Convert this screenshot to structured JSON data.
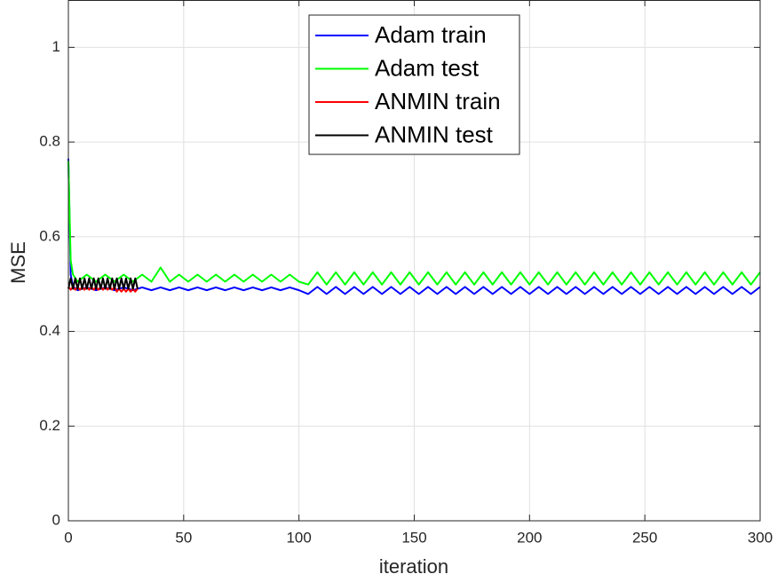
{
  "chart_data": {
    "type": "line",
    "xlabel": "iteration",
    "ylabel": "MSE",
    "xlim": [
      0,
      300
    ],
    "ylim": [
      0,
      1.1
    ],
    "xticks": [
      0,
      50,
      100,
      150,
      200,
      250,
      300
    ],
    "yticks": [
      0,
      0.2,
      0.4,
      0.6,
      0.8,
      1
    ],
    "grid": true,
    "legend": "top",
    "series": [
      {
        "name": "Adam train",
        "color": "#0000ff",
        "x": [
          0,
          1,
          2,
          4,
          8,
          12,
          16,
          20,
          24,
          28,
          32,
          36,
          40,
          44,
          48,
          52,
          56,
          60,
          64,
          68,
          72,
          76,
          80,
          84,
          88,
          92,
          96,
          100,
          104,
          108,
          112,
          116,
          120,
          124,
          128,
          132,
          136,
          140,
          144,
          148,
          152,
          156,
          160,
          164,
          168,
          172,
          176,
          180,
          184,
          188,
          192,
          196,
          200,
          204,
          208,
          212,
          216,
          220,
          224,
          228,
          232,
          236,
          240,
          244,
          248,
          252,
          256,
          260,
          264,
          268,
          272,
          276,
          280,
          284,
          288,
          292,
          296,
          300
        ],
        "values": [
          0.765,
          0.52,
          0.495,
          0.487,
          0.493,
          0.487,
          0.493,
          0.487,
          0.493,
          0.487,
          0.493,
          0.487,
          0.493,
          0.487,
          0.493,
          0.487,
          0.493,
          0.487,
          0.493,
          0.487,
          0.493,
          0.487,
          0.493,
          0.487,
          0.493,
          0.487,
          0.493,
          0.487,
          0.479,
          0.494,
          0.479,
          0.494,
          0.479,
          0.494,
          0.479,
          0.494,
          0.479,
          0.494,
          0.479,
          0.494,
          0.479,
          0.494,
          0.479,
          0.494,
          0.479,
          0.494,
          0.479,
          0.494,
          0.479,
          0.494,
          0.479,
          0.494,
          0.479,
          0.494,
          0.479,
          0.494,
          0.479,
          0.494,
          0.479,
          0.494,
          0.479,
          0.494,
          0.479,
          0.494,
          0.479,
          0.494,
          0.479,
          0.494,
          0.479,
          0.494,
          0.479,
          0.494,
          0.479,
          0.494,
          0.479,
          0.494,
          0.479,
          0.494
        ]
      },
      {
        "name": "Adam test",
        "color": "#00ff00",
        "x": [
          0,
          1,
          2,
          4,
          8,
          12,
          16,
          20,
          24,
          28,
          32,
          36,
          40,
          44,
          48,
          52,
          56,
          60,
          64,
          68,
          72,
          76,
          80,
          84,
          88,
          92,
          96,
          100,
          104,
          108,
          112,
          116,
          120,
          124,
          128,
          132,
          136,
          140,
          144,
          148,
          152,
          156,
          160,
          164,
          168,
          172,
          176,
          180,
          184,
          188,
          192,
          196,
          200,
          204,
          208,
          212,
          216,
          220,
          224,
          228,
          232,
          236,
          240,
          244,
          248,
          252,
          256,
          260,
          264,
          268,
          272,
          276,
          280,
          284,
          288,
          292,
          296,
          300
        ],
        "values": [
          0.76,
          0.55,
          0.52,
          0.505,
          0.52,
          0.505,
          0.52,
          0.505,
          0.52,
          0.505,
          0.52,
          0.505,
          0.535,
          0.505,
          0.52,
          0.505,
          0.52,
          0.505,
          0.52,
          0.505,
          0.52,
          0.505,
          0.52,
          0.505,
          0.52,
          0.505,
          0.52,
          0.505,
          0.499,
          0.525,
          0.499,
          0.525,
          0.499,
          0.525,
          0.499,
          0.525,
          0.499,
          0.525,
          0.499,
          0.525,
          0.499,
          0.525,
          0.499,
          0.525,
          0.499,
          0.525,
          0.499,
          0.525,
          0.499,
          0.525,
          0.499,
          0.525,
          0.499,
          0.525,
          0.499,
          0.525,
          0.499,
          0.525,
          0.499,
          0.525,
          0.499,
          0.525,
          0.499,
          0.525,
          0.499,
          0.525,
          0.499,
          0.525,
          0.499,
          0.525,
          0.499,
          0.525,
          0.499,
          0.525,
          0.499,
          0.525,
          0.499,
          0.525
        ]
      },
      {
        "name": "ANMIN train",
        "color": "#ff0000",
        "x": [
          0,
          1,
          2,
          3,
          4,
          5,
          6,
          7,
          8,
          9,
          10,
          11,
          12,
          13,
          14,
          15,
          16,
          17,
          18,
          19,
          20,
          21,
          22,
          23,
          24,
          25,
          26,
          27,
          28,
          29,
          30
        ],
        "values": [
          0.495,
          0.488,
          0.494,
          0.488,
          0.494,
          0.488,
          0.494,
          0.488,
          0.494,
          0.488,
          0.494,
          0.488,
          0.494,
          0.488,
          0.494,
          0.488,
          0.494,
          0.488,
          0.494,
          0.488,
          0.494,
          0.484,
          0.49,
          0.484,
          0.49,
          0.484,
          0.49,
          0.484,
          0.49,
          0.484,
          0.49
        ]
      },
      {
        "name": "ANMIN test",
        "color": "#000000",
        "x": [
          0,
          1,
          2,
          3,
          4,
          5,
          6,
          7,
          8,
          9,
          10,
          11,
          12,
          13,
          14,
          15,
          16,
          17,
          18,
          19,
          20,
          21,
          22,
          23,
          24,
          25,
          26,
          27,
          28,
          29,
          30
        ],
        "values": [
          0.49,
          0.512,
          0.49,
          0.512,
          0.49,
          0.512,
          0.49,
          0.512,
          0.49,
          0.512,
          0.49,
          0.512,
          0.49,
          0.512,
          0.49,
          0.512,
          0.49,
          0.512,
          0.49,
          0.512,
          0.49,
          0.512,
          0.49,
          0.512,
          0.49,
          0.512,
          0.49,
          0.512,
          0.49,
          0.512,
          0.49
        ]
      }
    ]
  }
}
